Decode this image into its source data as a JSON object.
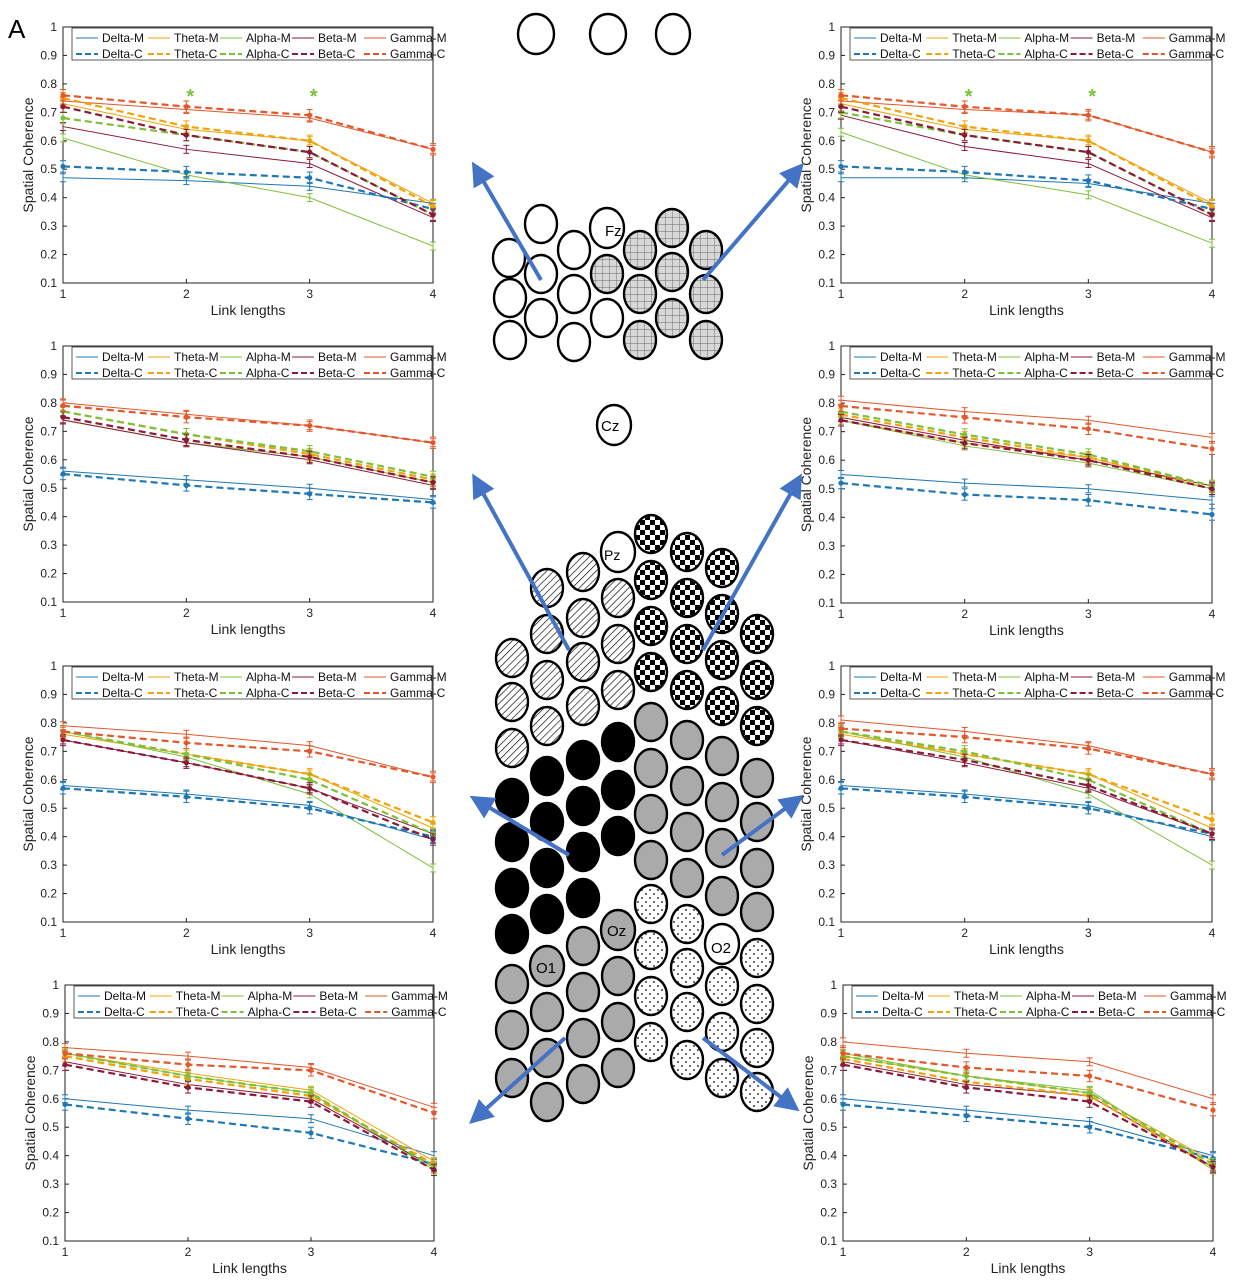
{
  "figure": {
    "panel_label": "A",
    "electrode_labels": {
      "fz": "Fz",
      "cz": "Cz",
      "pz": "Pz",
      "oz": "Oz",
      "o1": "O1",
      "o2": "O2"
    }
  },
  "colors": {
    "Delta": "#1f77b4",
    "Theta": "#f0a30a",
    "Alpha": "#7cc13a",
    "Beta": "#8b1a3a",
    "Gamma": "#e2572b",
    "arrow": "#4472c4",
    "star": "#7cc13a"
  },
  "legend_labels": [
    "Delta-M",
    "Theta-M",
    "Alpha-M",
    "Beta-M",
    "Gamma-M",
    "Delta-C",
    "Theta-C",
    "Alpha-C",
    "Beta-C",
    "Gamma-C"
  ],
  "chart_data": [
    {
      "id": "top-left",
      "type": "line",
      "xlabel": "Link lengths",
      "ylabel": "Spatial Coherence",
      "x": [
        1,
        2,
        3,
        4
      ],
      "ylim": [
        0.1,
        1
      ],
      "legend": true,
      "stars_at_x": [
        2,
        3
      ],
      "series": [
        {
          "name": "Delta-M",
          "values": [
            0.47,
            0.46,
            0.44,
            0.38
          ]
        },
        {
          "name": "Theta-M",
          "values": [
            0.73,
            0.64,
            0.6,
            0.38
          ]
        },
        {
          "name": "Alpha-M",
          "values": [
            0.61,
            0.48,
            0.4,
            0.23
          ]
        },
        {
          "name": "Beta-M",
          "values": [
            0.65,
            0.57,
            0.52,
            0.33
          ]
        },
        {
          "name": "Gamma-M",
          "values": [
            0.74,
            0.71,
            0.68,
            0.57
          ]
        },
        {
          "name": "Delta-C",
          "values": [
            0.51,
            0.49,
            0.47,
            0.36
          ]
        },
        {
          "name": "Theta-C",
          "values": [
            0.75,
            0.65,
            0.6,
            0.37
          ]
        },
        {
          "name": "Alpha-C",
          "values": [
            0.68,
            0.62,
            0.56,
            0.34
          ]
        },
        {
          "name": "Beta-C",
          "values": [
            0.72,
            0.62,
            0.56,
            0.34
          ]
        },
        {
          "name": "Gamma-C",
          "values": [
            0.76,
            0.72,
            0.69,
            0.57
          ]
        }
      ]
    },
    {
      "id": "top-right",
      "type": "line",
      "xlabel": "Link lengths",
      "ylabel": "Spatial Coherence",
      "x": [
        1,
        2,
        3,
        4
      ],
      "ylim": [
        0.1,
        1
      ],
      "legend": true,
      "stars_at_x": [
        2,
        3
      ],
      "series": [
        {
          "name": "Delta-M",
          "values": [
            0.47,
            0.47,
            0.45,
            0.38
          ]
        },
        {
          "name": "Theta-M",
          "values": [
            0.73,
            0.64,
            0.6,
            0.38
          ]
        },
        {
          "name": "Alpha-M",
          "values": [
            0.63,
            0.48,
            0.41,
            0.24
          ]
        },
        {
          "name": "Beta-M",
          "values": [
            0.69,
            0.58,
            0.52,
            0.33
          ]
        },
        {
          "name": "Gamma-M",
          "values": [
            0.74,
            0.71,
            0.69,
            0.56
          ]
        },
        {
          "name": "Delta-C",
          "values": [
            0.51,
            0.49,
            0.46,
            0.36
          ]
        },
        {
          "name": "Theta-C",
          "values": [
            0.75,
            0.65,
            0.6,
            0.37
          ]
        },
        {
          "name": "Alpha-C",
          "values": [
            0.7,
            0.62,
            0.56,
            0.34
          ]
        },
        {
          "name": "Beta-C",
          "values": [
            0.72,
            0.62,
            0.56,
            0.34
          ]
        },
        {
          "name": "Gamma-C",
          "values": [
            0.76,
            0.72,
            0.69,
            0.56
          ]
        }
      ]
    },
    {
      "id": "mid-left",
      "type": "line",
      "xlabel": "Link lengths",
      "ylabel": "Spatial Coherence",
      "x": [
        1,
        2,
        3,
        4
      ],
      "ylim": [
        0.1,
        1
      ],
      "legend": true,
      "series": [
        {
          "name": "Delta-M",
          "values": [
            0.56,
            0.53,
            0.5,
            0.46
          ]
        },
        {
          "name": "Theta-M",
          "values": [
            0.74,
            0.66,
            0.61,
            0.52
          ]
        },
        {
          "name": "Alpha-M",
          "values": [
            0.74,
            0.66,
            0.61,
            0.52
          ]
        },
        {
          "name": "Beta-M",
          "values": [
            0.74,
            0.66,
            0.6,
            0.51
          ]
        },
        {
          "name": "Gamma-M",
          "values": [
            0.8,
            0.76,
            0.72,
            0.66
          ]
        },
        {
          "name": "Delta-C",
          "values": [
            0.55,
            0.51,
            0.48,
            0.45
          ]
        },
        {
          "name": "Theta-C",
          "values": [
            0.77,
            0.69,
            0.62,
            0.53
          ]
        },
        {
          "name": "Alpha-C",
          "values": [
            0.77,
            0.69,
            0.63,
            0.54
          ]
        },
        {
          "name": "Beta-C",
          "values": [
            0.75,
            0.67,
            0.61,
            0.52
          ]
        },
        {
          "name": "Gamma-C",
          "values": [
            0.79,
            0.75,
            0.72,
            0.66
          ]
        }
      ]
    },
    {
      "id": "mid-right",
      "type": "line",
      "xlabel": "Link lengths",
      "ylabel": "Spatial Coherence",
      "x": [
        1,
        2,
        3,
        4
      ],
      "ylim": [
        0.1,
        1
      ],
      "legend": true,
      "series": [
        {
          "name": "Delta-M",
          "values": [
            0.55,
            0.52,
            0.5,
            0.46
          ]
        },
        {
          "name": "Theta-M",
          "values": [
            0.74,
            0.66,
            0.61,
            0.5
          ]
        },
        {
          "name": "Alpha-M",
          "values": [
            0.74,
            0.65,
            0.59,
            0.5
          ]
        },
        {
          "name": "Beta-M",
          "values": [
            0.75,
            0.67,
            0.6,
            0.51
          ]
        },
        {
          "name": "Gamma-M",
          "values": [
            0.81,
            0.77,
            0.74,
            0.68
          ]
        },
        {
          "name": "Delta-C",
          "values": [
            0.52,
            0.48,
            0.46,
            0.41
          ]
        },
        {
          "name": "Theta-C",
          "values": [
            0.76,
            0.68,
            0.61,
            0.51
          ]
        },
        {
          "name": "Alpha-C",
          "values": [
            0.77,
            0.69,
            0.62,
            0.51
          ]
        },
        {
          "name": "Beta-C",
          "values": [
            0.74,
            0.66,
            0.6,
            0.5
          ]
        },
        {
          "name": "Gamma-C",
          "values": [
            0.79,
            0.75,
            0.71,
            0.64
          ]
        }
      ]
    },
    {
      "id": "lower-left",
      "type": "line",
      "xlabel": "Link lengths",
      "ylabel": "Spatial Coherence",
      "x": [
        1,
        2,
        3,
        4
      ],
      "ylim": [
        0.1,
        1
      ],
      "legend": true,
      "series": [
        {
          "name": "Delta-M",
          "values": [
            0.58,
            0.55,
            0.51,
            0.39
          ]
        },
        {
          "name": "Theta-M",
          "values": [
            0.76,
            0.69,
            0.62,
            0.43
          ]
        },
        {
          "name": "Alpha-M",
          "values": [
            0.77,
            0.68,
            0.55,
            0.29
          ]
        },
        {
          "name": "Beta-M",
          "values": [
            0.74,
            0.66,
            0.57,
            0.41
          ]
        },
        {
          "name": "Gamma-M",
          "values": [
            0.79,
            0.76,
            0.72,
            0.61
          ]
        },
        {
          "name": "Delta-C",
          "values": [
            0.57,
            0.54,
            0.5,
            0.4
          ]
        },
        {
          "name": "Theta-C",
          "values": [
            0.77,
            0.69,
            0.62,
            0.45
          ]
        },
        {
          "name": "Alpha-C",
          "values": [
            0.77,
            0.69,
            0.6,
            0.41
          ]
        },
        {
          "name": "Beta-C",
          "values": [
            0.74,
            0.66,
            0.57,
            0.39
          ]
        },
        {
          "name": "Gamma-C",
          "values": [
            0.77,
            0.73,
            0.7,
            0.61
          ]
        }
      ]
    },
    {
      "id": "lower-right",
      "type": "line",
      "xlabel": "Link lengths",
      "ylabel": "Spatial Coherence",
      "x": [
        1,
        2,
        3,
        4
      ],
      "ylim": [
        0.1,
        1
      ],
      "legend": true,
      "series": [
        {
          "name": "Delta-M",
          "values": [
            0.58,
            0.55,
            0.51,
            0.4
          ]
        },
        {
          "name": "Theta-M",
          "values": [
            0.76,
            0.69,
            0.62,
            0.43
          ]
        },
        {
          "name": "Alpha-M",
          "values": [
            0.77,
            0.68,
            0.55,
            0.3
          ]
        },
        {
          "name": "Beta-M",
          "values": [
            0.74,
            0.66,
            0.57,
            0.41
          ]
        },
        {
          "name": "Gamma-M",
          "values": [
            0.81,
            0.77,
            0.72,
            0.62
          ]
        },
        {
          "name": "Delta-C",
          "values": [
            0.57,
            0.54,
            0.5,
            0.41
          ]
        },
        {
          "name": "Theta-C",
          "values": [
            0.77,
            0.69,
            0.62,
            0.46
          ]
        },
        {
          "name": "Alpha-C",
          "values": [
            0.77,
            0.7,
            0.6,
            0.41
          ]
        },
        {
          "name": "Beta-C",
          "values": [
            0.74,
            0.67,
            0.58,
            0.41
          ]
        },
        {
          "name": "Gamma-C",
          "values": [
            0.78,
            0.75,
            0.71,
            0.62
          ]
        }
      ]
    },
    {
      "id": "bottom-left",
      "type": "line",
      "xlabel": "Link lengths",
      "ylabel": "Spatial Coherence",
      "x": [
        1,
        2,
        3,
        4
      ],
      "ylim": [
        0.1,
        1
      ],
      "legend": true,
      "series": [
        {
          "name": "Delta-M",
          "values": [
            0.6,
            0.56,
            0.53,
            0.4
          ]
        },
        {
          "name": "Theta-M",
          "values": [
            0.76,
            0.69,
            0.63,
            0.38
          ]
        },
        {
          "name": "Alpha-M",
          "values": [
            0.76,
            0.68,
            0.62,
            0.35
          ]
        },
        {
          "name": "Beta-M",
          "values": [
            0.73,
            0.65,
            0.6,
            0.36
          ]
        },
        {
          "name": "Gamma-M",
          "values": [
            0.78,
            0.75,
            0.71,
            0.57
          ]
        },
        {
          "name": "Delta-C",
          "values": [
            0.58,
            0.53,
            0.48,
            0.37
          ]
        },
        {
          "name": "Theta-C",
          "values": [
            0.75,
            0.67,
            0.61,
            0.37
          ]
        },
        {
          "name": "Alpha-C",
          "values": [
            0.76,
            0.68,
            0.62,
            0.36
          ]
        },
        {
          "name": "Beta-C",
          "values": [
            0.72,
            0.64,
            0.59,
            0.35
          ]
        },
        {
          "name": "Gamma-C",
          "values": [
            0.76,
            0.72,
            0.7,
            0.55
          ]
        }
      ]
    },
    {
      "id": "bottom-right",
      "type": "line",
      "xlabel": "Link lengths",
      "ylabel": "Spatial Coherence",
      "x": [
        1,
        2,
        3,
        4
      ],
      "ylim": [
        0.1,
        1
      ],
      "legend": true,
      "series": [
        {
          "name": "Delta-M",
          "values": [
            0.6,
            0.56,
            0.52,
            0.4
          ]
        },
        {
          "name": "Theta-M",
          "values": [
            0.75,
            0.68,
            0.62,
            0.38
          ]
        },
        {
          "name": "Alpha-M",
          "values": [
            0.76,
            0.68,
            0.63,
            0.35
          ]
        },
        {
          "name": "Beta-M",
          "values": [
            0.73,
            0.65,
            0.61,
            0.36
          ]
        },
        {
          "name": "Gamma-M",
          "values": [
            0.8,
            0.76,
            0.73,
            0.6
          ]
        },
        {
          "name": "Delta-C",
          "values": [
            0.58,
            0.54,
            0.5,
            0.39
          ]
        },
        {
          "name": "Theta-C",
          "values": [
            0.74,
            0.66,
            0.61,
            0.36
          ]
        },
        {
          "name": "Alpha-C",
          "values": [
            0.75,
            0.68,
            0.62,
            0.37
          ]
        },
        {
          "name": "Beta-C",
          "values": [
            0.72,
            0.64,
            0.59,
            0.36
          ]
        },
        {
          "name": "Gamma-C",
          "values": [
            0.76,
            0.71,
            0.68,
            0.56
          ]
        }
      ]
    }
  ]
}
